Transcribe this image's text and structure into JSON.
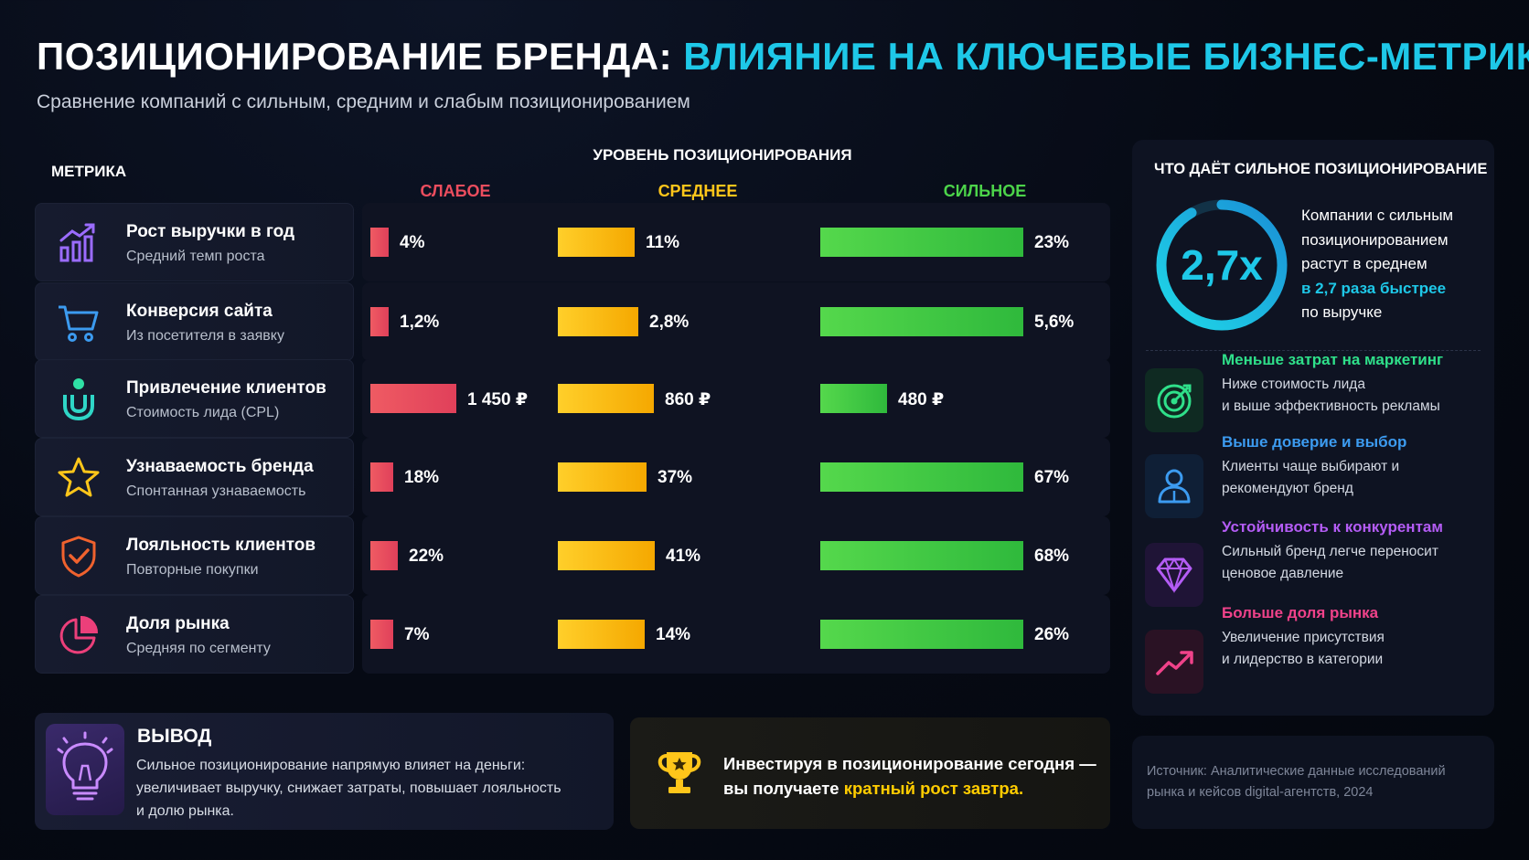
{
  "header": {
    "title_part1": "ПОЗИЦИОНИРОВАНИЕ БРЕНДА:",
    "title_part2": "ВЛИЯНИЕ НА КЛЮЧЕВЫЕ БИЗНЕС-МЕТРИКИ",
    "subtitle": "Сравнение компаний с сильным, средним и слабым позиционированием"
  },
  "table": {
    "metric_header": "МЕТРИКА",
    "level_header": "УРОВЕНЬ ПОЗИЦИОНИРОВАНИЯ",
    "columns": [
      "СЛАБОЕ",
      "СРЕДНЕЕ",
      "СИЛЬНОЕ"
    ]
  },
  "colors": {
    "weak": "#ec4d5e",
    "medium": "#ffc61a",
    "strong": "#4cd44a",
    "accent": "#1ec8e8"
  },
  "chart_data": {
    "type": "bar",
    "categories": [
      "Рост выручки в год",
      "Конверсия сайта",
      "Привлечение клиентов",
      "Узнаваемость бренда",
      "Лояльность клиентов",
      "Доля рынка"
    ],
    "descriptions": [
      "Средний темп роста",
      "Из посетителя в заявку",
      "Стоимость лида (CPL)",
      "Спонтанная узнаваемость",
      "Повторные покупки",
      "Средняя по сегменту"
    ],
    "icons": [
      "growth-chart-icon",
      "shopping-cart-icon",
      "magnet-icon",
      "star-icon",
      "shield-check-icon",
      "pie-chart-icon"
    ],
    "series": [
      {
        "name": "СЛАБОЕ",
        "values": [
          4,
          1.2,
          1450,
          18,
          22,
          7
        ],
        "labels": [
          "4%",
          "1,2%",
          "1 450 ₽",
          "18%",
          "22%",
          "7%"
        ]
      },
      {
        "name": "СРЕДНЕЕ",
        "values": [
          11,
          2.8,
          860,
          37,
          41,
          14
        ],
        "labels": [
          "11%",
          "2,8%",
          "860 ₽",
          "37%",
          "41%",
          "14%"
        ]
      },
      {
        "name": "СИЛЬНОЕ",
        "values": [
          23,
          5.6,
          480,
          67,
          68,
          26
        ],
        "labels": [
          "23%",
          "5,6%",
          "480 ₽",
          "67%",
          "68%",
          "26%"
        ]
      }
    ]
  },
  "side": {
    "title": "ЧТО ДАЁТ СИЛЬНОЕ ПОЗИЦИОНИРОВАНИЕ",
    "ring_value": "2,7x",
    "desc_lines": [
      "Компании с сильным",
      "позиционированием",
      "растут в среднем"
    ],
    "desc_highlight": "в 2,7 раза быстрее",
    "desc_tail": "по выручке",
    "benefits": [
      {
        "title": "Меньше затрат на маркетинг",
        "line1": "Ниже стоимость лида",
        "line2": "и выше эффективность рекламы",
        "color": "#2fe08a",
        "icon": "target-icon"
      },
      {
        "title": "Выше доверие и выбор",
        "line1": "Клиенты чаще выбирают и",
        "line2": "рекомендуют бренд",
        "color": "#3c9bf0",
        "icon": "user-icon"
      },
      {
        "title": "Устойчивость к конкурентам",
        "line1": "Сильный бренд легче переносит",
        "line2": "ценовое давление",
        "color": "#b45cf5",
        "icon": "diamond-icon"
      },
      {
        "title": "Больше доля рынка",
        "line1": "Увеличение присутствия",
        "line2": "и лидерство в категории",
        "color": "#f0428a",
        "icon": "trend-up-icon"
      }
    ]
  },
  "source": {
    "line1": "Источник: Аналитические данные исследований",
    "line2": "рынка и кейсов digital-агентств, 2024"
  },
  "conclusion": {
    "title": "ВЫВОД",
    "line1": "Сильное позиционирование напрямую влияет на деньги:",
    "line2": "увеличивает выручку, снижает затраты, повышает лояльность",
    "line3": "и долю рынка."
  },
  "invest": {
    "line1": "Инвестируя в позиционирование сегодня —",
    "line2_prefix": "вы получаете",
    "line2_highlight": "кратный рост завтра."
  }
}
